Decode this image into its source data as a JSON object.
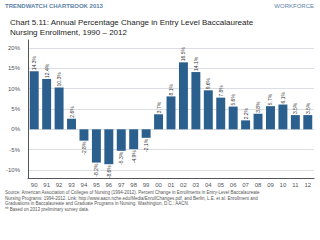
{
  "chart_data": {
    "type": "bar",
    "title": "Chart 5.11: Annual Percentage Change in Entry Level Baccalaureate\nNursing Enrollment, 1990 – 2012",
    "annotations": [
      "TRENDWATCH CHARTBOOK 2013",
      "WORKFORCE",
      "Source: American Association of Colleges of Nursing (1994-2012). Percent Change in Enrollments in Entry-Level Baccalaureate\nNursing Programs: 1994-2012. Link: http://www.aacn.nche.edu/Media/EnrollChanges.pdf, and Berlin, L.E. et al. Enrollment and\nGraduations in Baccalaureate and Graduate Programs in Nursing. Washington, D.C.: AACN.",
      "** Based on 2013 preliminary survey data."
    ],
    "categories": [
      "90",
      "91",
      "92",
      "93",
      "94",
      "95",
      "96",
      "97",
      "98",
      "99",
      "00",
      "01",
      "02",
      "03",
      "04",
      "05",
      "06",
      "07",
      "08",
      "09",
      "10",
      "11",
      "12"
    ],
    "values": [
      14.3,
      12.4,
      10.3,
      2.6,
      -2.8,
      -8.2,
      -8.6,
      -5.3,
      -4.9,
      -2.1,
      3.7,
      8.1,
      16.5,
      14.1,
      9.6,
      7.8,
      5.6,
      2.2,
      3.8,
      5.7,
      6.1,
      3.5,
      3.5
    ],
    "value_labels": [
      "14.3%",
      "12.4%",
      "10.3%",
      "2.6%",
      "-2.8%",
      "-8.2%",
      "-8.6%",
      "-5.3%",
      "-4.9%",
      "-2.1%",
      "3.7%",
      "8.1%",
      "16.5%",
      "14.1%",
      "9.6%",
      "7.8%",
      "5.6%",
      "2.2%",
      "3.8%",
      "5.7%",
      "6.1%",
      "3.5%",
      "3.5%"
    ],
    "data_labels": true,
    "color": "#2B5F8E",
    "ylim": [
      -12,
      22
    ],
    "yticks": [
      {
        "value": -10,
        "label": "-10%"
      },
      {
        "value": -5,
        "label": "-5%"
      },
      {
        "value": 0,
        "label": "0%"
      },
      {
        "value": 5,
        "label": "5%"
      },
      {
        "value": 10,
        "label": "10%"
      },
      {
        "value": 15,
        "label": "15%"
      },
      {
        "value": 20,
        "label": "20%"
      }
    ],
    "grid": true
  }
}
